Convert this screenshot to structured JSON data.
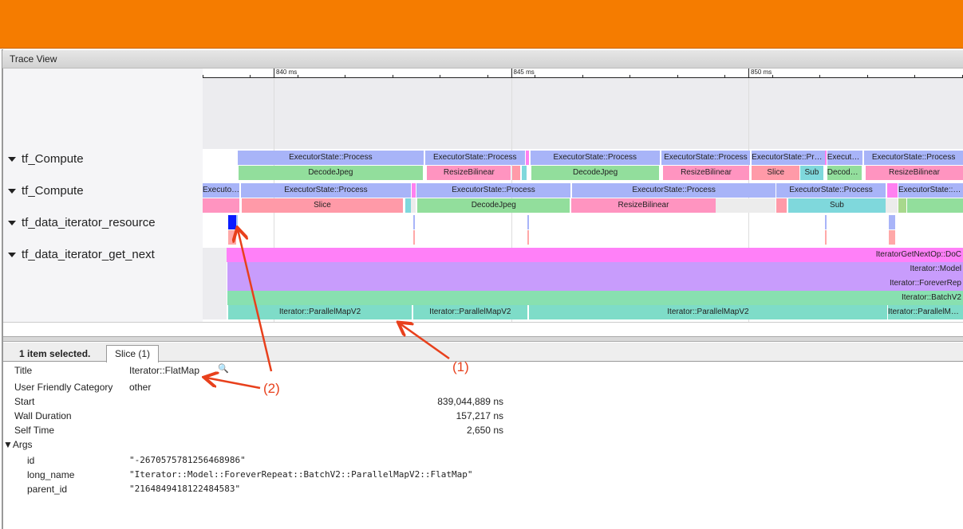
{
  "header": {
    "color": "#f57c00"
  },
  "panel_title": "Trace View",
  "ruler": {
    "ticks": [
      {
        "ms": 840,
        "label": "840 ms"
      },
      {
        "ms": 845,
        "label": "845 ms"
      },
      {
        "ms": 850,
        "label": "850 ms"
      }
    ]
  },
  "tracks": [
    {
      "name": "tf_Compute",
      "rows": [
        [
          {
            "n": "ExecutorState::Process",
            "s": 839.24,
            "e": 843.16,
            "c": "#a8b4f8"
          },
          {
            "n": "ExecutorState::Process",
            "s": 843.19,
            "e": 845.29,
            "c": "#a8b4f8"
          },
          {
            "n": "",
            "s": 845.31,
            "e": 845.38,
            "c": "#ff80f0"
          },
          {
            "n": "ExecutorState::Process",
            "s": 845.41,
            "e": 848.13,
            "c": "#a8b4f8"
          },
          {
            "n": "ExecutorState::Process",
            "s": 848.17,
            "e": 850.03,
            "c": "#a8b4f8"
          },
          {
            "n": "ExecutorState::Process",
            "s": 850.07,
            "e": 851.61,
            "c": "#a8b4f8"
          },
          {
            "n": "",
            "s": 851.61,
            "e": 851.65,
            "c": "#ff80f0"
          },
          {
            "n": "ExecutorState::Process",
            "s": 851.66,
            "e": 852.4,
            "c": "#a8b4f8"
          },
          {
            "n": "ExecutorState::Process",
            "s": 852.44,
            "e": 856.9,
            "c": "#a8b4f8"
          }
        ],
        [
          {
            "n": "DecodeJpeg",
            "s": 839.26,
            "e": 843.14,
            "c": "#92de9c"
          },
          {
            "n": "ResizeBilinear",
            "s": 843.23,
            "e": 845.0,
            "c": "#ff94c0"
          },
          {
            "n": "",
            "s": 845.03,
            "e": 845.19,
            "c": "#ff9aa8"
          },
          {
            "n": "",
            "s": 845.23,
            "e": 845.33,
            "c": "#7fd8dc"
          },
          {
            "n": "DecodeJpeg",
            "s": 845.43,
            "e": 848.12,
            "c": "#92de9c"
          },
          {
            "n": "ResizeBilinear",
            "s": 848.2,
            "e": 850.02,
            "c": "#ff94c0"
          },
          {
            "n": "Slice",
            "s": 850.07,
            "e": 851.08,
            "c": "#ff9aa8"
          },
          {
            "n": "Sub",
            "s": 851.09,
            "e": 851.58,
            "c": "#7fd8dc"
          },
          {
            "n": "DecodeJpeg",
            "s": 851.66,
            "e": 852.39,
            "c": "#92de9c"
          },
          {
            "n": "ResizeBilinear",
            "s": 852.47,
            "e": 856.9,
            "c": "#ff94c0"
          }
        ]
      ]
    },
    {
      "name": "tf_Compute",
      "rows": [
        [
          {
            "n": "ExecutorState::Process",
            "s": 838.5,
            "e": 839.28,
            "c": "#a8b4f8"
          },
          {
            "n": "ExecutorState::Process",
            "s": 839.31,
            "e": 842.89,
            "c": "#a8b4f8"
          },
          {
            "n": "",
            "s": 842.91,
            "e": 842.99,
            "c": "#ff80f0"
          },
          {
            "n": "ExecutorState::Process",
            "s": 843.01,
            "e": 846.25,
            "c": "#a8b4f8"
          },
          {
            "n": "ExecutorState::Process",
            "s": 846.29,
            "e": 850.57,
            "c": "#a8b4f8"
          },
          {
            "n": "ExecutorState::Process",
            "s": 850.59,
            "e": 852.89,
            "c": "#a8b4f8"
          },
          {
            "n": "",
            "s": 852.92,
            "e": 853.14,
            "c": "#ff80f0"
          },
          {
            "n": "ExecutorState::Process",
            "s": 853.16,
            "e": 857.4,
            "c": "#a8b4f8"
          }
        ],
        [
          {
            "n": "",
            "s": 838.5,
            "e": 839.28,
            "c": "#ff94c0"
          },
          {
            "n": "Slice",
            "s": 839.33,
            "e": 842.72,
            "c": "#ff9aa8"
          },
          {
            "n": "",
            "s": 842.77,
            "e": 842.89,
            "c": "#7fd8dc"
          },
          {
            "n": "",
            "s": 842.89,
            "e": 842.99,
            "c": "#ececec"
          },
          {
            "n": "DecodeJpeg",
            "s": 843.03,
            "e": 846.24,
            "c": "#92de9c"
          },
          {
            "n": "ResizeBilinear",
            "s": 846.27,
            "e": 849.31,
            "c": "#ff94c0"
          },
          {
            "n": "",
            "s": 849.31,
            "e": 850.57,
            "c": "#ececec"
          },
          {
            "n": "",
            "s": 850.59,
            "e": 850.81,
            "c": "#ff9aa8"
          },
          {
            "n": "Sub",
            "s": 850.84,
            "e": 852.89,
            "c": "#7fd8dc"
          },
          {
            "n": "",
            "s": 852.89,
            "e": 853.14,
            "c": "#ececec"
          },
          {
            "n": "",
            "s": 853.16,
            "e": 853.33,
            "c": "#a8d88c"
          },
          {
            "n": "",
            "s": 853.34,
            "e": 856.9,
            "c": "#92de9c"
          }
        ]
      ]
    },
    {
      "name": "tf_data_iterator_resource",
      "rows": [
        [
          {
            "n": "",
            "s": 839.045,
            "e": 839.202,
            "c": "#0a1cff"
          },
          {
            "n": "",
            "s": 839.21,
            "e": 839.24,
            "c": "#a8c4f8"
          },
          {
            "n": "",
            "s": 842.94,
            "e": 842.97,
            "c": "#a8b4f8"
          },
          {
            "n": "",
            "s": 845.34,
            "e": 845.38,
            "c": "#a8b4f8"
          },
          {
            "n": "",
            "s": 851.61,
            "e": 851.65,
            "c": "#a8b4f8"
          },
          {
            "n": "",
            "s": 852.96,
            "e": 853.09,
            "c": "#a8b4f8"
          }
        ],
        [
          {
            "n": "",
            "s": 839.045,
            "e": 839.202,
            "c": "#ffa8a8"
          },
          {
            "n": "",
            "s": 842.94,
            "e": 842.97,
            "c": "#ffa8a8"
          },
          {
            "n": "",
            "s": 845.34,
            "e": 845.38,
            "c": "#ffa8a8"
          },
          {
            "n": "",
            "s": 851.61,
            "e": 851.64,
            "c": "#ffa8a8"
          },
          {
            "n": "",
            "s": 852.96,
            "e": 853.09,
            "c": "#ffa8a8"
          }
        ]
      ]
    },
    {
      "name": "tf_data_iterator_get_next",
      "rows": [
        [
          {
            "n": "IteratorGetNextOp::DoC",
            "s": 839.01,
            "e": 855,
            "c": "#ff80f8",
            "right": true
          }
        ],
        [
          {
            "n": "Iterator::Model",
            "s": 839.03,
            "e": 855,
            "c": "#c89cfc",
            "right": true
          }
        ],
        [
          {
            "n": "Iterator::ForeverRep",
            "s": 839.03,
            "e": 855,
            "c": "#c89cfc",
            "right": true
          }
        ],
        [
          {
            "n": "Iterator::BatchV2",
            "s": 839.03,
            "e": 855,
            "c": "#88e0b0",
            "right": true
          }
        ],
        [
          {
            "n": "Iterator::ParallelMapV2",
            "s": 839.04,
            "e": 842.91,
            "c": "#7edcc8"
          },
          {
            "n": "Iterator::ParallelMapV2",
            "s": 842.94,
            "e": 845.34,
            "c": "#7edcc8"
          },
          {
            "n": "Iterator::ParallelMapV2",
            "s": 845.38,
            "e": 852.92,
            "c": "#7edcc8"
          },
          {
            "n": "Iterator::ParallelMapV2",
            "s": 852.94,
            "e": 856.7,
            "c": "#7edcc8"
          }
        ]
      ]
    }
  ],
  "details": {
    "selection_count": "1 item selected.",
    "tab": "Slice (1)",
    "title_label": "Title",
    "title_value": "Iterator::FlatMap",
    "category_label": "User Friendly Category",
    "category_value": "other",
    "start_label": "Start",
    "start_value": "839,044,889 ns",
    "wall_label": "Wall Duration",
    "wall_value": "157,217 ns",
    "self_label": "Self Time",
    "self_value": "2,650 ns",
    "args_label": "▼Args",
    "args": [
      {
        "k": "id",
        "v": "\"-2670575781256468986\""
      },
      {
        "k": "long_name",
        "v": "\"Iterator::Model::ForeverRepeat::BatchV2::ParallelMapV2::FlatMap\""
      },
      {
        "k": "parent_id",
        "v": "\"2164849418122484583\""
      }
    ]
  },
  "annotations": {
    "label_1": "(1)",
    "label_2": "(2)",
    "color": "#e8401c"
  }
}
